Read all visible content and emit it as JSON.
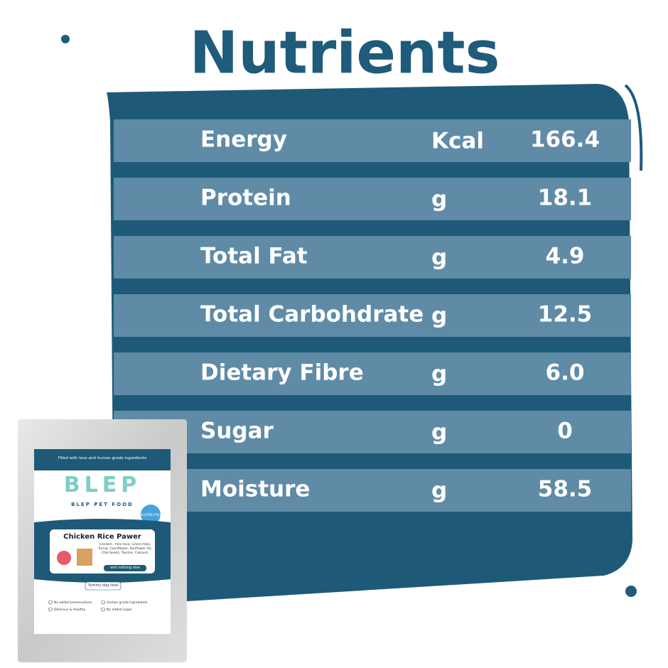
{
  "title": "Nutrients",
  "table": {
    "rows": [
      [
        "Energy",
        "Kcal",
        "166.4"
      ],
      [
        "Protein",
        "g",
        "18.1"
      ],
      [
        "Total Fat",
        "g",
        "4.9"
      ],
      [
        "Total Carbohdrate",
        "g",
        "12.5"
      ],
      [
        "Dietary Fibre",
        "g",
        "6.0"
      ],
      [
        "Sugar",
        "g",
        "0"
      ],
      [
        "Moisture",
        "g",
        "58.5"
      ]
    ]
  },
  "package": {
    "tagline": "Filled with love and human grade ingredients",
    "logo": "BLEP",
    "brand": "BLEP PET FOOD",
    "badge": "GLUTEN FREE",
    "product": "Chicken Rice Pawer",
    "ingredients": "Chicken , Poni Rice, Green Peas, Turnip, Cauliflower, Sunflower Oil, Chia Seeds, Taurine, Calcium,",
    "nothing_else": "and nothing else",
    "label": "Yummy dog food",
    "features": [
      "No added preservatives",
      "Human grade ingredients",
      "Delicious & Healthy",
      "No added sugar"
    ]
  }
}
